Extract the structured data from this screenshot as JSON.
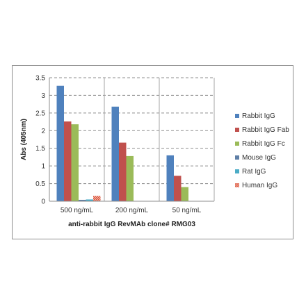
{
  "chart_data": {
    "type": "bar",
    "title": "",
    "xlabel": "anti-rabbit  IgG RevMAb clone# RMG03",
    "ylabel": "Abs (405nm)",
    "ylim": [
      0,
      3.5
    ],
    "yticks": [
      "0",
      "0.5",
      "1",
      "1.5",
      "2",
      "2.5",
      "3",
      "3.5"
    ],
    "categories": [
      "500 ng/mL",
      "200 ng/mL",
      "50 ng/mL"
    ],
    "grid": true,
    "legend_position": "right",
    "series": [
      {
        "name": "Rabbit IgG",
        "color": "#4f81bd",
        "values": [
          3.27,
          2.68,
          1.3
        ]
      },
      {
        "name": "Rabbit IgG Fab",
        "color": "#c0504d",
        "values": [
          2.26,
          1.66,
          0.72
        ]
      },
      {
        "name": "Rabbit IgG Fc",
        "color": "#9bbb59",
        "values": [
          2.18,
          1.28,
          0.4
        ]
      },
      {
        "name": "Mouse IgG",
        "color": "#5f7fa6",
        "values": [
          0.04,
          0.0,
          0.0
        ]
      },
      {
        "name": "Rat IgG",
        "color": "#4bacc6",
        "values": [
          0.05,
          0.0,
          0.0
        ]
      },
      {
        "name": "Human IgG",
        "color": "#e36b52",
        "values": [
          0.15,
          0.0,
          0.0
        ],
        "pattern": "checker"
      }
    ]
  }
}
